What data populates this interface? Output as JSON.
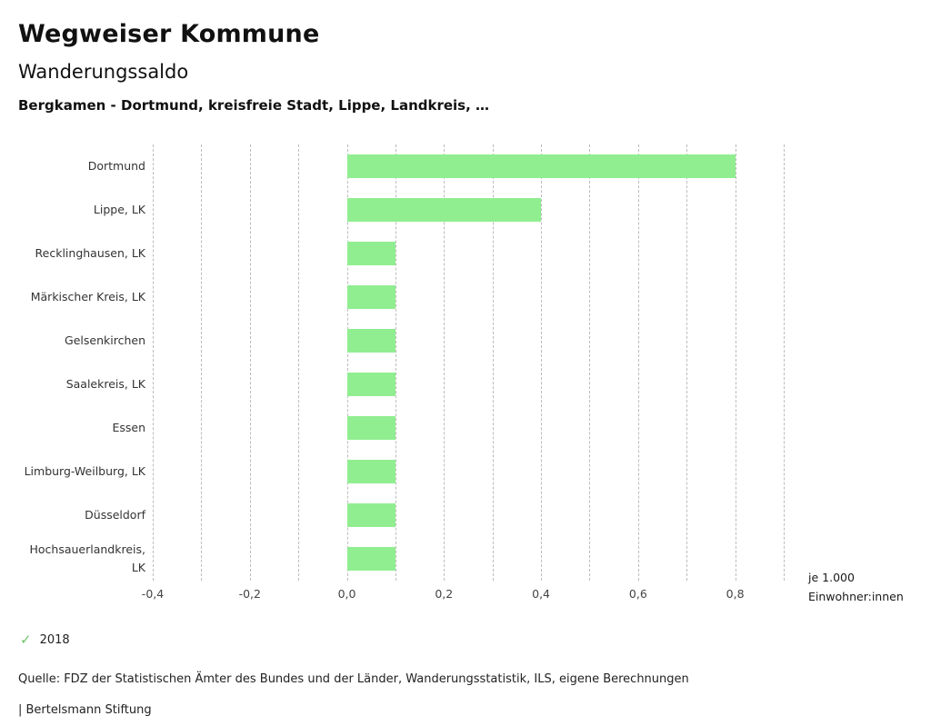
{
  "header": {
    "title": "Wegweiser Kommune",
    "subtitle": "Wanderungssaldo",
    "selection": "Bergkamen - Dortmund, kreisfreie Stadt, Lippe, Landkreis, …"
  },
  "chart_data": {
    "type": "bar",
    "orientation": "horizontal",
    "title": "Wanderungssaldo",
    "categories": [
      "Dortmund",
      "Lippe, LK",
      "Recklinghausen, LK",
      "Märkischer Kreis, LK",
      "Gelsenkirchen",
      "Saalekreis, LK",
      "Essen",
      "Limburg-Weilburg, LK",
      "Düsseldorf",
      "Hochsauerlandkreis, LK"
    ],
    "values": [
      0.8,
      0.4,
      0.1,
      0.1,
      0.1,
      0.1,
      0.1,
      0.1,
      0.1,
      0.1
    ],
    "series_name": "2018",
    "bar_color": "#90ee90",
    "xlim": [
      -0.4,
      0.9
    ],
    "grid_step": 0.1,
    "grid": true,
    "xtick_values": [
      -0.4,
      -0.2,
      0,
      0.2,
      0.4,
      0.6,
      0.8
    ],
    "xtick_labels": [
      "-0,4",
      "-0,2",
      "0,0",
      "0,2",
      "0,4",
      "0,6",
      "0,8"
    ],
    "unit_label": [
      "je 1.000",
      "Einwohner:innen"
    ],
    "legend_position": "bottom-left"
  },
  "legend": {
    "year": "2018",
    "check_icon": "✓",
    "check_color": "#6cc46b"
  },
  "footer": {
    "source": "Quelle: FDZ der Statistischen Ämter des Bundes und der Länder, Wanderungsstatistik, ILS, eigene Berechnungen",
    "branding": "| Bertelsmann Stiftung"
  }
}
